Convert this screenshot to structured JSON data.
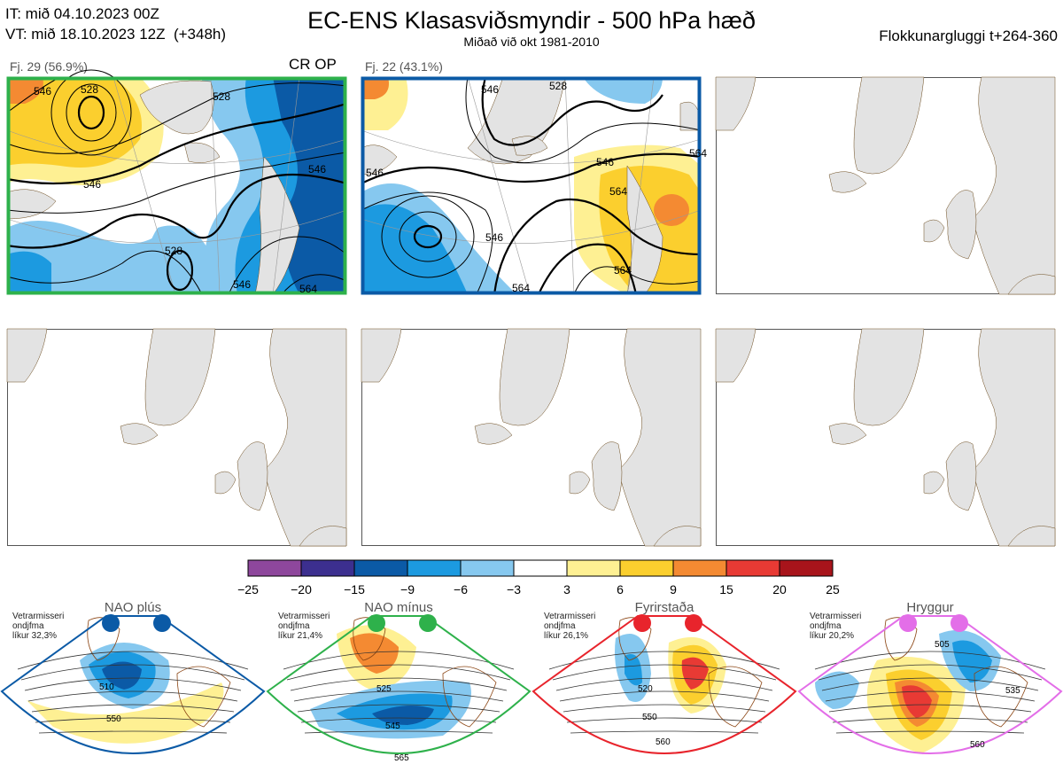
{
  "header": {
    "it": "IT: mið 04.10.2023 00Z",
    "vt": "VT: mið 18.10.2023 12Z",
    "vt_lead": "(+348h)",
    "title": "EC-ENS Klasasviðsmyndir - 500 hPa hæð",
    "subtitle": "Miðað við okt 1981-2010",
    "window": "Flokkunargluggi t+264-360"
  },
  "panels": [
    {
      "label": "Fj. 29 (56.9%)",
      "tag": "CR OP",
      "border": "#2eb14b"
    },
    {
      "label": "Fj. 22 (43.1%)",
      "tag": "",
      "border": "#0b5aa6"
    }
  ],
  "contour_labels": {
    "p1": [
      "546",
      "528",
      "528",
      "546",
      "546",
      "528",
      "546",
      "564"
    ],
    "p2": [
      "546",
      "528",
      "546",
      "546",
      "564",
      "546",
      "564",
      "564",
      "564"
    ]
  },
  "chart_data": {
    "type": "heatmap",
    "colorbar": {
      "ticks": [
        "−25",
        "−20",
        "−15",
        "−9",
        "−6",
        "−3",
        "3",
        "6",
        "9",
        "15",
        "20",
        "25"
      ],
      "colors": [
        "#8e479c",
        "#3c2f8f",
        "#0b5aa6",
        "#1c9ae0",
        "#86c8ef",
        "#ffffff",
        "#fef093",
        "#fbcf2e",
        "#f48a32",
        "#e83a34",
        "#a8141b"
      ]
    },
    "clusters": [
      {
        "label": "Fj. 29 (56.9%)",
        "members": 29,
        "percent": 56.9
      },
      {
        "label": "Fj. 22 (43.1%)",
        "members": 22,
        "percent": 43.1
      }
    ]
  },
  "regimes": [
    {
      "name": "NAO plús",
      "note": [
        "Vetrarmisseri",
        "ondjfma",
        "líkur 32,3%"
      ],
      "color": "#0b5aa6",
      "labels": [
        "510",
        "550"
      ]
    },
    {
      "name": "NAO mínus",
      "note": [
        "Vetrarmisseri",
        "ondjfma",
        "líkur 21,4%"
      ],
      "color": "#2eb14b",
      "labels": [
        "525",
        "545",
        "565"
      ]
    },
    {
      "name": "Fyrirstaða",
      "note": [
        "Vetrarmisseri",
        "ondjfma",
        "líkur 26,1%"
      ],
      "color": "#e8242c",
      "labels": [
        "520",
        "550",
        "560"
      ]
    },
    {
      "name": "Hryggur",
      "note": [
        "Vetrarmisseri",
        "ondjfma",
        "líkur 20,2%"
      ],
      "color": "#e36ee8",
      "labels": [
        "505",
        "535",
        "560"
      ]
    }
  ]
}
